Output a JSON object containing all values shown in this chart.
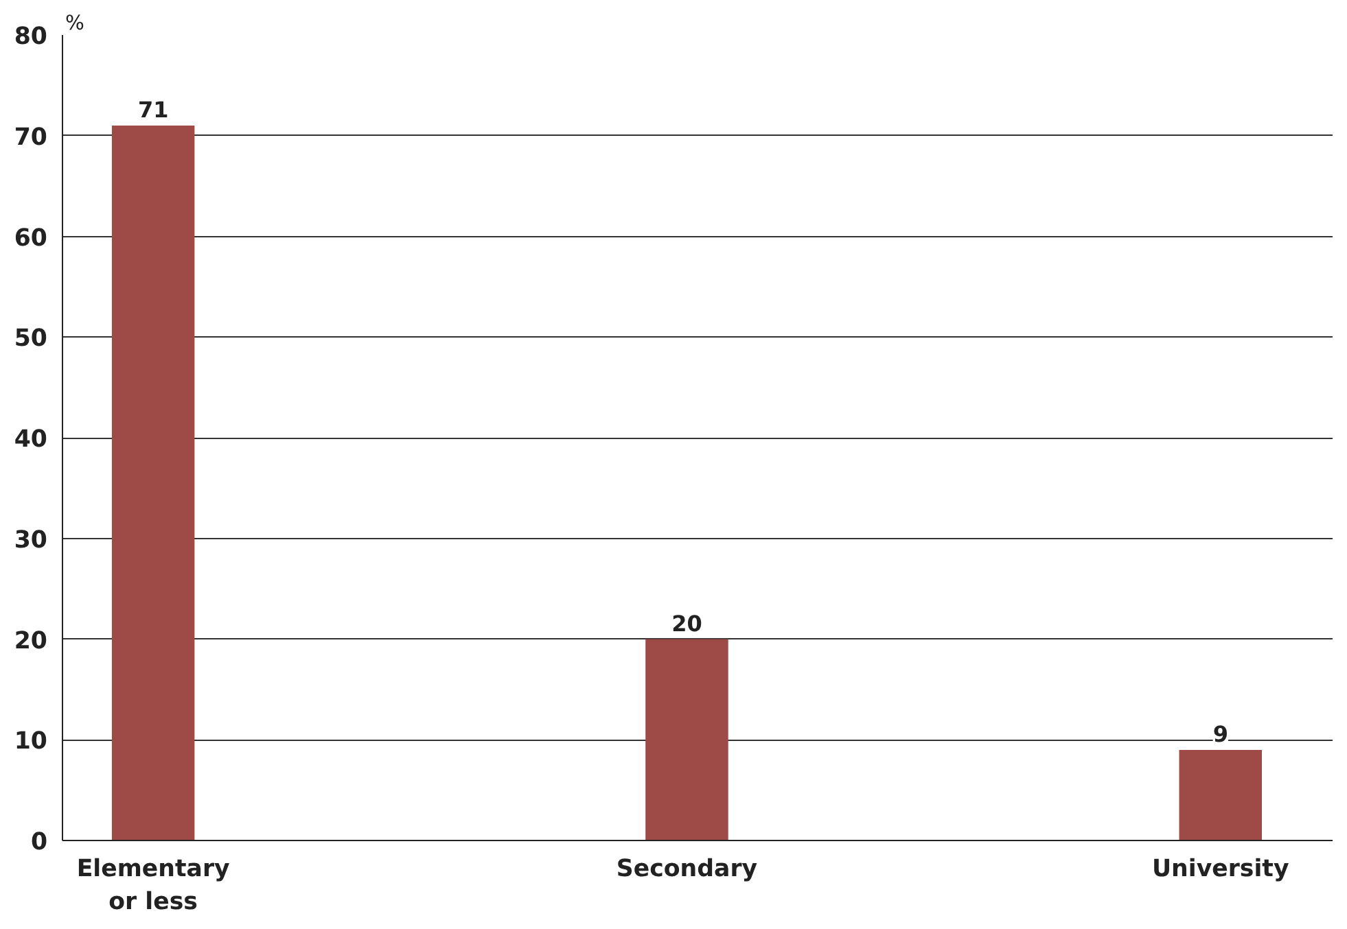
{
  "chart_data": {
    "type": "bar",
    "ylabel": "%",
    "categories": [
      "Elementary or less",
      "Secondary",
      "University"
    ],
    "values": [
      71,
      20,
      9
    ],
    "color": "#9e4a47",
    "ylim": [
      0,
      80
    ],
    "yticks": [
      0,
      10,
      20,
      30,
      40,
      50,
      60,
      70,
      80
    ],
    "grid": "y",
    "data_labels": true
  }
}
